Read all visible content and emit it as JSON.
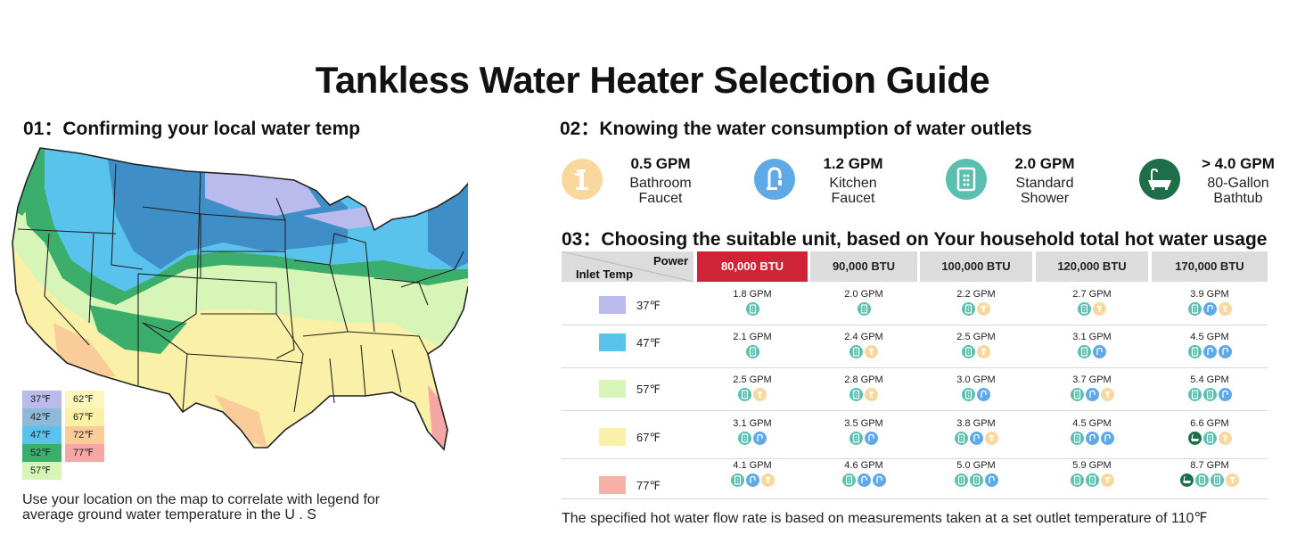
{
  "title": "Tankless Water Heater Selection Guide",
  "section1": {
    "title": "01：Confirming your local water temp",
    "note_line1": "Use your location on the map to correlate with legend for",
    "note_line2": "average ground water temperature in the U . S",
    "legend": [
      {
        "label": "37℉",
        "color": "#b8bbec"
      },
      {
        "label": "42℉",
        "color": "#8fb9d9"
      },
      {
        "label": "47℉",
        "color": "#59c3ed"
      },
      {
        "label": "52℉",
        "color": "#3aae6a"
      },
      {
        "label": "57℉",
        "color": "#d8f5b8"
      },
      {
        "label": "62℉",
        "color": "#fbf6b9"
      },
      {
        "label": "67℉",
        "color": "#faf0a7"
      },
      {
        "label": "72℉",
        "color": "#f9cc9a"
      },
      {
        "label": "77℉",
        "color": "#f7a6a6"
      }
    ]
  },
  "section2": {
    "title": "02：Knowing the water consumption of water outlets",
    "outlets": [
      {
        "gpm": "0.5 GPM",
        "line1": "Bathroom",
        "line2": "Faucet",
        "icon": "bathroom-faucet-icon",
        "color": "#fad79c"
      },
      {
        "gpm": "1.2 GPM",
        "line1": "Kitchen",
        "line2": "Faucet",
        "icon": "kitchen-faucet-icon",
        "color": "#5ea9e6"
      },
      {
        "gpm": "2.0 GPM",
        "line1": "Standard",
        "line2": "Shower",
        "icon": "shower-icon",
        "color": "#5bbfb0"
      },
      {
        "gpm": "> 4.0 GPM",
        "line1": "80-Gallon",
        "line2": "Bathtub",
        "icon": "bathtub-icon",
        "color": "#1f6e4a"
      }
    ]
  },
  "section3": {
    "title": "03：Choosing the suitable unit, based on Your household total hot water usage",
    "header_power": "Power",
    "header_inlet": "Inlet Temp",
    "columns": [
      "80,000 BTU",
      "90,000 BTU",
      "100,000 BTU",
      "120,000 BTU",
      "170,000 BTU"
    ],
    "highlight_color": "#cf2338",
    "rows": [
      {
        "temp": "37℉",
        "color": "#b8bbec",
        "cells": [
          {
            "gpm": "1.8 GPM",
            "icons": [
              "shower"
            ]
          },
          {
            "gpm": "2.0 GPM",
            "icons": [
              "shower"
            ]
          },
          {
            "gpm": "2.2 GPM",
            "icons": [
              "shower",
              "bath"
            ]
          },
          {
            "gpm": "2.7 GPM",
            "icons": [
              "shower",
              "bath"
            ]
          },
          {
            "gpm": "3.9 GPM",
            "icons": [
              "shower",
              "faucet",
              "bath"
            ]
          }
        ]
      },
      {
        "temp": "47℉",
        "color": "#59c3ed",
        "cells": [
          {
            "gpm": "2.1 GPM",
            "icons": [
              "shower"
            ]
          },
          {
            "gpm": "2.4 GPM",
            "icons": [
              "shower",
              "bath"
            ]
          },
          {
            "gpm": "2.5 GPM",
            "icons": [
              "shower",
              "bath"
            ]
          },
          {
            "gpm": "3.1 GPM",
            "icons": [
              "shower",
              "faucet"
            ]
          },
          {
            "gpm": "4.5 GPM",
            "icons": [
              "shower",
              "faucet",
              "faucet"
            ]
          }
        ]
      },
      {
        "temp": "57℉",
        "color": "#d8f5b8",
        "cells": [
          {
            "gpm": "2.5 GPM",
            "icons": [
              "shower",
              "bath"
            ]
          },
          {
            "gpm": "2.8 GPM",
            "icons": [
              "shower",
              "bath"
            ]
          },
          {
            "gpm": "3.0 GPM",
            "icons": [
              "shower",
              "faucet"
            ]
          },
          {
            "gpm": "3.7 GPM",
            "icons": [
              "shower",
              "faucet",
              "bath"
            ]
          },
          {
            "gpm": "5.4 GPM",
            "icons": [
              "shower",
              "shower",
              "faucet"
            ]
          }
        ]
      },
      {
        "temp": "67℉",
        "color": "#faf0a7",
        "cells": [
          {
            "gpm": "3.1 GPM",
            "icons": [
              "shower",
              "faucet"
            ]
          },
          {
            "gpm": "3.5 GPM",
            "icons": [
              "shower",
              "faucet"
            ]
          },
          {
            "gpm": "3.8 GPM",
            "icons": [
              "shower",
              "faucet",
              "bath"
            ]
          },
          {
            "gpm": "4.5 GPM",
            "icons": [
              "shower",
              "faucet",
              "faucet"
            ]
          },
          {
            "gpm": "6.6 GPM",
            "icons": [
              "tub",
              "shower",
              "bath"
            ]
          }
        ]
      },
      {
        "temp": "77℉",
        "color": "#f7b1a6",
        "cells": [
          {
            "gpm": "4.1 GPM",
            "icons": [
              "shower",
              "faucet",
              "bath"
            ]
          },
          {
            "gpm": "4.6 GPM",
            "icons": [
              "shower",
              "faucet",
              "faucet"
            ]
          },
          {
            "gpm": "5.0 GPM",
            "icons": [
              "shower",
              "shower",
              "faucet"
            ]
          },
          {
            "gpm": "5.9 GPM",
            "icons": [
              "shower",
              "shower",
              "bath"
            ]
          },
          {
            "gpm": "8.7 GPM",
            "icons": [
              "tub",
              "shower",
              "shower",
              "bath"
            ]
          }
        ]
      }
    ]
  },
  "footnote": "The specified hot water flow rate is based on measurements taken at a set outlet temperature of 110℉"
}
